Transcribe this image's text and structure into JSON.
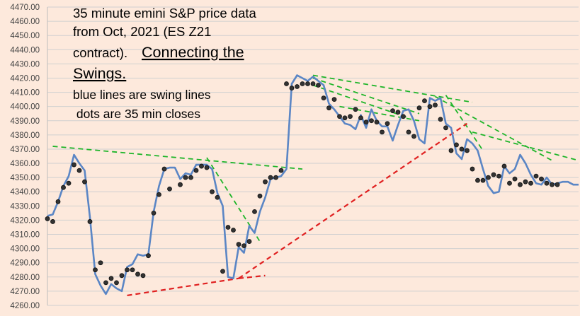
{
  "chart_data": {
    "type": "line",
    "title": "35 minute emini S&P price data",
    "annotations": [
      {
        "text": "35 minute emini S&P price data",
        "style": "normal"
      },
      {
        "text": "from Oct, 2021 (ES Z21",
        "style": "normal"
      },
      {
        "text": "contract).",
        "style": "normal"
      },
      {
        "text": "Connecting the",
        "style": "underline-large"
      },
      {
        "text": "Swings.",
        "style": "underline-large"
      },
      {
        "text": "blue lines are swing lines",
        "style": "small"
      },
      {
        "text": " dots are 35 min closes",
        "style": "small"
      }
    ],
    "ylim": [
      4260,
      4470
    ],
    "y_ticks": [
      "4260.00",
      "4270.00",
      "4280.00",
      "4290.00",
      "4300.00",
      "4310.00",
      "4320.00",
      "4330.00",
      "4340.00",
      "4350.00",
      "4360.00",
      "4370.00",
      "4380.00",
      "4390.00",
      "4400.00",
      "4410.00",
      "4420.00",
      "4430.00",
      "4440.00",
      "4450.00",
      "4460.00",
      "4470.00"
    ],
    "x_range": [
      0,
      100
    ],
    "grid": true,
    "colors": {
      "background": "#fde9dc",
      "grid": "#d0d0d0",
      "swing_line": "#5b86c5",
      "green_trend": "#1fb52a",
      "red_trend": "#e02020",
      "dot": "#333333"
    },
    "swing_line": {
      "name": "blue lines are swing lines",
      "x": [
        0,
        1,
        2,
        3,
        4,
        5,
        6,
        7,
        8,
        9,
        10,
        11,
        12,
        13,
        14,
        15,
        16,
        17,
        18,
        19,
        20,
        21,
        22,
        23,
        24,
        25,
        26,
        27,
        28,
        29,
        30,
        31,
        32,
        33,
        34,
        35,
        36,
        37,
        38,
        39,
        40,
        41,
        42,
        43,
        44,
        45,
        46,
        47,
        48,
        49,
        50,
        51,
        52,
        53,
        54,
        55,
        56,
        57,
        58,
        59,
        60,
        61,
        62,
        63,
        64,
        65,
        66,
        67,
        68,
        69,
        70,
        71,
        72,
        73,
        74,
        75,
        76,
        77,
        78,
        79,
        80,
        81,
        82,
        83,
        84,
        85,
        86,
        87,
        88,
        89,
        90,
        91,
        92,
        93,
        94,
        95,
        96,
        97,
        98,
        99,
        100
      ],
      "values": [
        4323,
        4324,
        4333,
        4344,
        4351,
        4366,
        4360,
        4355,
        4322,
        4282,
        4274,
        4268,
        4275,
        4272,
        4270,
        4287,
        4289,
        4296,
        4295,
        4296,
        4326,
        4344,
        4356,
        4357,
        4357,
        4349,
        4353,
        4352,
        4359,
        4359,
        4359,
        4356,
        4339,
        4330,
        4280,
        4279,
        4301,
        4297,
        4316,
        4311,
        4326,
        4336,
        4349,
        4350,
        4351,
        4356,
        4416,
        4422,
        4420,
        4418,
        4421,
        4418,
        4415,
        4402,
        4398,
        4393,
        4388,
        4387,
        4384,
        4394,
        4385,
        4398,
        4390,
        4386,
        4386,
        4376,
        4387,
        4397,
        4398,
        4390,
        4377,
        4374,
        4406,
        4404,
        4406,
        4388,
        4385,
        4367,
        4363,
        4377,
        4374,
        4369,
        4356,
        4344,
        4339,
        4340,
        4358,
        4353,
        4356,
        4366,
        4360,
        4352,
        4346,
        4345,
        4350,
        4345,
        4346,
        4347,
        4347,
        4345,
        4345
      ]
    },
    "closes": {
      "name": "dots are 35 min closes",
      "x": [
        0,
        1,
        2,
        3,
        4,
        5,
        6,
        7,
        8,
        9,
        10,
        11,
        12,
        13,
        14,
        15,
        16,
        17,
        18,
        19,
        20,
        21,
        22,
        23,
        25,
        26,
        27,
        28,
        29,
        30,
        31,
        32,
        33,
        34,
        35,
        36,
        37,
        38,
        39,
        40,
        41,
        42,
        43,
        44,
        45,
        46,
        47,
        48,
        49,
        50,
        51,
        52,
        53,
        54,
        55,
        56,
        57,
        58,
        59,
        60,
        61,
        62,
        63,
        64,
        65,
        66,
        67,
        68,
        69,
        70,
        71,
        72,
        73,
        74,
        75,
        76,
        77,
        78,
        79,
        80,
        81,
        82,
        83,
        84,
        85,
        86,
        87,
        88,
        89,
        90,
        91,
        92,
        93,
        94,
        95,
        96
      ],
      "values": [
        4321,
        4319,
        4333,
        4343,
        4346,
        4359,
        4355,
        4347,
        4319,
        4285,
        4290,
        4276,
        4279,
        4276,
        4281,
        4285,
        4285,
        4282,
        4281,
        4295,
        4325,
        4338,
        4356,
        4342,
        4345,
        4350,
        4350,
        4355,
        4358,
        4357,
        4340,
        4336,
        4284,
        4315,
        4313,
        4303,
        4302,
        4305,
        4326,
        4337,
        4347,
        4350,
        4350,
        4355,
        4416,
        4413,
        4414,
        4416,
        4416,
        4416,
        4415,
        4406,
        4399,
        4405,
        4393,
        4392,
        4393,
        4398,
        4392,
        4389,
        4390,
        4389,
        4382,
        4388,
        4397,
        4396,
        4393,
        4382,
        4379,
        4399,
        4404,
        4400,
        4401,
        4391,
        4385,
        4369,
        4373,
        4370,
        4369,
        4356,
        4348,
        4348,
        4350,
        4352,
        4351,
        4358,
        4346,
        4349,
        4345,
        4347,
        4346,
        4351,
        4349,
        4346,
        4345,
        4345
      ]
    },
    "trend_lines": [
      {
        "color": "green",
        "x1": 1,
        "y1": 4372,
        "x2": 48,
        "y2": 4356
      },
      {
        "color": "green",
        "x1": 30,
        "y1": 4364,
        "x2": 40,
        "y2": 4305
      },
      {
        "color": "green",
        "x1": 50,
        "y1": 4422,
        "x2": 80,
        "y2": 4403
      },
      {
        "color": "green",
        "x1": 50,
        "y1": 4420,
        "x2": 70,
        "y2": 4395
      },
      {
        "color": "green",
        "x1": 50,
        "y1": 4415,
        "x2": 68,
        "y2": 4392
      },
      {
        "color": "green",
        "x1": 55,
        "y1": 4400,
        "x2": 70,
        "y2": 4390
      },
      {
        "color": "green",
        "x1": 73,
        "y1": 4407,
        "x2": 95,
        "y2": 4362
      },
      {
        "color": "green",
        "x1": 75,
        "y1": 4408,
        "x2": 82,
        "y2": 4369
      },
      {
        "color": "green",
        "x1": 80,
        "y1": 4382,
        "x2": 100,
        "y2": 4362
      },
      {
        "color": "red",
        "x1": 15,
        "y1": 4267,
        "x2": 36,
        "y2": 4279
      },
      {
        "color": "red",
        "x1": 36,
        "y1": 4279,
        "x2": 41,
        "y2": 4281
      },
      {
        "color": "red",
        "x1": 36,
        "y1": 4279,
        "x2": 79,
        "y2": 4388
      }
    ]
  }
}
